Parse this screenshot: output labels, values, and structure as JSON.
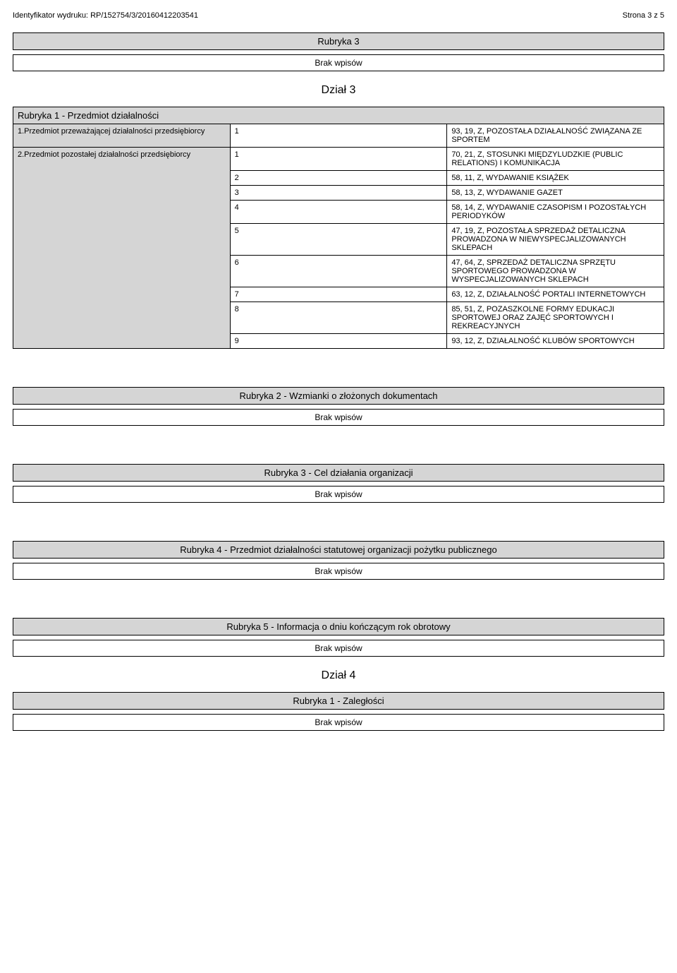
{
  "header": {
    "identyfikator_label": "Identyfikator wydruku:",
    "identyfikator_value": "RP/152754/3/20160412203541",
    "strona": "Strona 3 z 5"
  },
  "rubryka3_top": {
    "title": "Rubryka 3",
    "brak": "Brak wpisów"
  },
  "dzial3": {
    "heading": "Dział 3",
    "rubryka1": {
      "title": "Rubryka 1 - Przedmiot działalności",
      "field1_label": "1.Przedmiot przeważającej działalności przedsiębiorcy",
      "field1_items": [
        {
          "n": "1",
          "v": "93, 19, Z, POZOSTAŁA DZIAŁALNOŚĆ ZWIĄZANA ZE SPORTEM"
        }
      ],
      "field2_label": "2.Przedmiot pozostałej działalności przedsiębiorcy",
      "field2_items": [
        {
          "n": "1",
          "v": "70, 21, Z, STOSUNKI MIĘDZYLUDZKIE (PUBLIC RELATIONS) I KOMUNIKACJA"
        },
        {
          "n": "2",
          "v": "58, 11, Z, WYDAWANIE KSIĄŻEK"
        },
        {
          "n": "3",
          "v": "58, 13, Z, WYDAWANIE GAZET"
        },
        {
          "n": "4",
          "v": "58, 14, Z, WYDAWANIE CZASOPISM I POZOSTAŁYCH PERIODYKÓW"
        },
        {
          "n": "5",
          "v": "47, 19, Z, POZOSTAŁA SPRZEDAŻ DETALICZNA PROWADZONA W NIEWYSPECJALIZOWANYCH SKLEPACH"
        },
        {
          "n": "6",
          "v": "47, 64, Z, SPRZEDAŻ DETALICZNA SPRZĘTU SPORTOWEGO PROWADZONA W WYSPECJALIZOWANYCH SKLEPACH"
        },
        {
          "n": "7",
          "v": "63, 12, Z, DZIAŁALNOŚĆ PORTALI INTERNETOWYCH"
        },
        {
          "n": "8",
          "v": "85, 51, Z, POZASZKOLNE FORMY EDUKACJI SPORTOWEJ ORAZ ZAJĘĆ SPORTOWYCH I REKREACYJNYCH"
        },
        {
          "n": "9",
          "v": "93, 12, Z, DZIAŁALNOŚĆ KLUBÓW SPORTOWYCH"
        }
      ]
    },
    "rubryka2": {
      "title": "Rubryka 2 - Wzmianki o złożonych dokumentach",
      "brak": "Brak wpisów"
    },
    "rubryka3": {
      "title": "Rubryka 3 - Cel działania organizacji",
      "brak": "Brak wpisów"
    },
    "rubryka4": {
      "title": "Rubryka 4 - Przedmiot działalności statutowej organizacji pożytku publicznego",
      "brak": "Brak wpisów"
    },
    "rubryka5": {
      "title": "Rubryka 5 - Informacja o dniu kończącym rok obrotowy",
      "brak": "Brak wpisów"
    }
  },
  "dzial4": {
    "heading": "Dział 4",
    "rubryka1": {
      "title": "Rubryka 1 - Zaległości",
      "brak": "Brak wpisów"
    }
  }
}
